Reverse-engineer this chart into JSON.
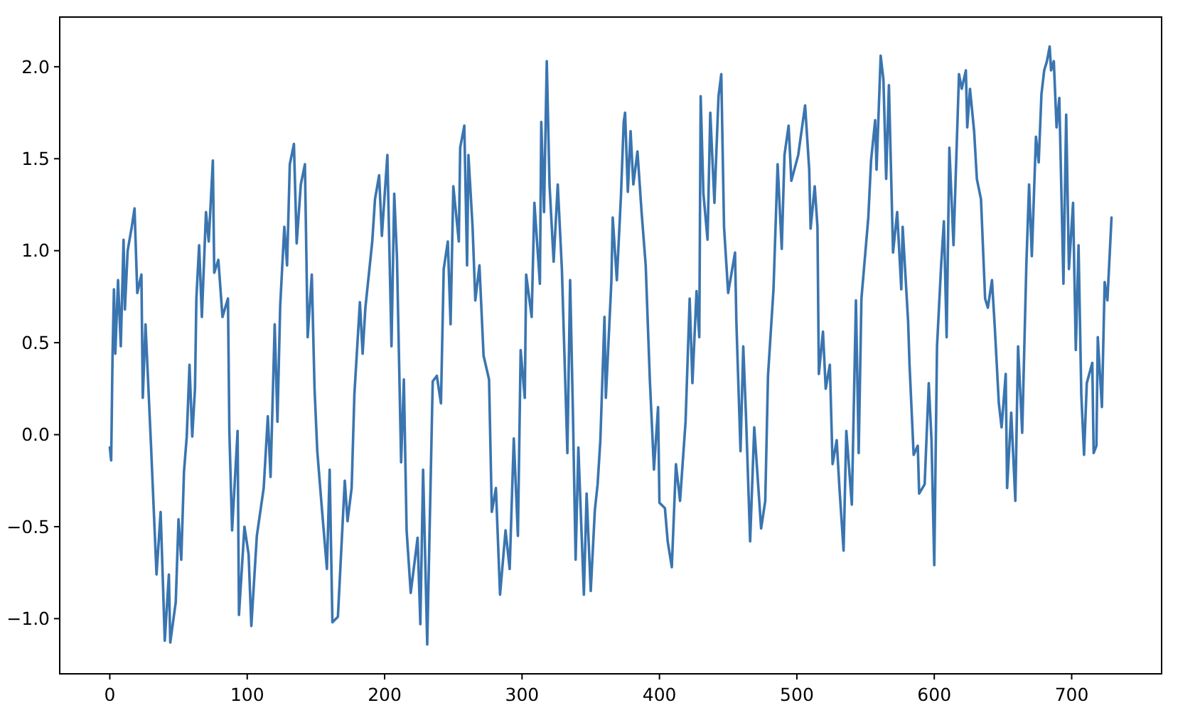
{
  "chart_data": {
    "type": "line",
    "xlim": [
      -36.45,
      765.45
    ],
    "ylim": [
      -1.3,
      2.27
    ],
    "xticks": [
      0,
      100,
      200,
      300,
      400,
      500,
      600,
      700
    ],
    "yticks": [
      {
        "value": -1,
        "label": "−1.0"
      },
      {
        "value": -0.5,
        "label": "−0.5"
      },
      {
        "value": 0,
        "label": "0.0"
      },
      0.5,
      {
        "value": 1,
        "label": "1.0"
      },
      1.5,
      {
        "value": 2,
        "label": "2.0"
      }
    ],
    "series": [
      {
        "color": "#3a75b0",
        "x": [
          0,
          1,
          2,
          3,
          4,
          6,
          8,
          10,
          11,
          13,
          16,
          18,
          20,
          23,
          24,
          26,
          30,
          34,
          37,
          40,
          43,
          44,
          48,
          50,
          52,
          54,
          56,
          58,
          60,
          62,
          63,
          65,
          67,
          70,
          72,
          75,
          76,
          79,
          82,
          86,
          87,
          89,
          93,
          94,
          98,
          101,
          103,
          107,
          112,
          115,
          117,
          120,
          122,
          124,
          127,
          129,
          131,
          134,
          136,
          139,
          142,
          144,
          147,
          149,
          151,
          154,
          158,
          160,
          162,
          166,
          171,
          173,
          176,
          178,
          182,
          184,
          186,
          191,
          193,
          196,
          198,
          202,
          205,
          207,
          209,
          212,
          214,
          216,
          219,
          224,
          226,
          228,
          231,
          235,
          238,
          241,
          243,
          246,
          248,
          250,
          254,
          255,
          258,
          260,
          261,
          264,
          266,
          269,
          272,
          276,
          278,
          281,
          284,
          288,
          291,
          294,
          297,
          299,
          302,
          303,
          307,
          309,
          313,
          314,
          316,
          318,
          320,
          323,
          326,
          329,
          333,
          335,
          337,
          339,
          341,
          345,
          347,
          350,
          353,
          355,
          357,
          360,
          361,
          365,
          366,
          369,
          372,
          374,
          375,
          377,
          379,
          381,
          384,
          387,
          390,
          393,
          396,
          399,
          400,
          404,
          406,
          409,
          412,
          415,
          419,
          422,
          424,
          427,
          429,
          430,
          432,
          435,
          437,
          440,
          443,
          445,
          447,
          450,
          455,
          456,
          459,
          461,
          463,
          466,
          469,
          474,
          477,
          479,
          483,
          486,
          489,
          491,
          494,
          496,
          501,
          506,
          509,
          510,
          513,
          515,
          516,
          519,
          521,
          524,
          526,
          529,
          531,
          534,
          536,
          540,
          543,
          545,
          547,
          552,
          554,
          557,
          558,
          561,
          563,
          565,
          567,
          570,
          573,
          576,
          577,
          581,
          582,
          585,
          588,
          589,
          593,
          596,
          598,
          600,
          602,
          605,
          607,
          609,
          611,
          614,
          618,
          620,
          623,
          624,
          626,
          629,
          631,
          634,
          637,
          639,
          642,
          644,
          647,
          649,
          652,
          653,
          656,
          659,
          661,
          664,
          667,
          669,
          671,
          674,
          676,
          678,
          680,
          682,
          684,
          685,
          687,
          689,
          691,
          694,
          696,
          698,
          701,
          703,
          705,
          707,
          709,
          711,
          715,
          716,
          718,
          719,
          722,
          724,
          726,
          729
        ],
        "values": [
          -0.07,
          -0.14,
          0.43,
          0.79,
          0.44,
          0.84,
          0.48,
          1.06,
          0.68,
          1.0,
          1.13,
          1.23,
          0.77,
          0.87,
          0.2,
          0.6,
          -0.06,
          -0.76,
          -0.42,
          -1.12,
          -0.76,
          -1.13,
          -0.91,
          -0.46,
          -0.68,
          -0.2,
          -0.01,
          0.38,
          -0.01,
          0.25,
          0.74,
          1.03,
          0.64,
          1.21,
          1.05,
          1.49,
          0.88,
          0.95,
          0.64,
          0.74,
          0.02,
          -0.52,
          0.02,
          -0.98,
          -0.5,
          -0.65,
          -1.04,
          -0.55,
          -0.29,
          0.1,
          -0.23,
          0.6,
          0.07,
          0.7,
          1.13,
          0.92,
          1.47,
          1.58,
          1.04,
          1.36,
          1.47,
          0.53,
          0.87,
          0.25,
          -0.09,
          -0.37,
          -0.73,
          -0.19,
          -1.02,
          -0.99,
          -0.25,
          -0.47,
          -0.29,
          0.22,
          0.72,
          0.44,
          0.69,
          1.05,
          1.28,
          1.41,
          1.08,
          1.52,
          0.48,
          1.31,
          0.96,
          -0.15,
          0.3,
          -0.52,
          -0.86,
          -0.56,
          -1.03,
          -0.19,
          -1.14,
          0.29,
          0.32,
          0.17,
          0.9,
          1.05,
          0.6,
          1.35,
          1.05,
          1.56,
          1.68,
          0.92,
          1.52,
          1.13,
          0.73,
          0.92,
          0.43,
          0.3,
          -0.42,
          -0.29,
          -0.87,
          -0.52,
          -0.73,
          -0.02,
          -0.55,
          0.46,
          0.2,
          0.87,
          0.64,
          1.26,
          0.82,
          1.7,
          1.21,
          2.03,
          1.36,
          0.94,
          1.36,
          0.9,
          -0.1,
          0.84,
          0.13,
          -0.68,
          -0.07,
          -0.87,
          -0.32,
          -0.85,
          -0.41,
          -0.27,
          -0.03,
          0.64,
          0.2,
          0.83,
          1.18,
          0.84,
          1.3,
          1.7,
          1.75,
          1.32,
          1.65,
          1.36,
          1.54,
          1.21,
          0.92,
          0.3,
          -0.19,
          0.15,
          -0.37,
          -0.4,
          -0.58,
          -0.72,
          -0.16,
          -0.36,
          0.07,
          0.74,
          0.28,
          0.78,
          0.53,
          1.84,
          1.31,
          1.06,
          1.75,
          1.26,
          1.84,
          1.96,
          1.13,
          0.77,
          0.99,
          0.61,
          -0.09,
          0.48,
          0.1,
          -0.58,
          0.04,
          -0.51,
          -0.36,
          0.32,
          0.79,
          1.47,
          1.01,
          1.52,
          1.68,
          1.38,
          1.52,
          1.79,
          1.44,
          1.12,
          1.35,
          1.13,
          0.33,
          0.56,
          0.25,
          0.38,
          -0.16,
          -0.03,
          -0.29,
          -0.63,
          0.02,
          -0.38,
          0.73,
          -0.1,
          0.74,
          1.18,
          1.49,
          1.71,
          1.44,
          2.06,
          1.93,
          1.39,
          1.9,
          0.99,
          1.21,
          0.79,
          1.13,
          0.61,
          0.38,
          -0.11,
          -0.06,
          -0.32,
          -0.27,
          0.28,
          -0.03,
          -0.71,
          0.48,
          0.92,
          1.16,
          0.53,
          1.56,
          1.03,
          1.96,
          1.88,
          1.98,
          1.67,
          1.88,
          1.65,
          1.39,
          1.28,
          0.74,
          0.69,
          0.84,
          0.59,
          0.17,
          0.04,
          0.33,
          -0.29,
          0.12,
          -0.36,
          0.48,
          0.01,
          0.92,
          1.36,
          0.97,
          1.62,
          1.48,
          1.85,
          1.98,
          2.03,
          2.11,
          1.98,
          2.03,
          1.67,
          1.83,
          0.82,
          1.74,
          0.9,
          1.26,
          0.46,
          1.03,
          0.22,
          -0.11,
          0.28,
          0.39,
          -0.1,
          -0.06,
          0.53,
          0.15,
          0.83,
          0.73,
          1.18
        ]
      }
    ]
  }
}
